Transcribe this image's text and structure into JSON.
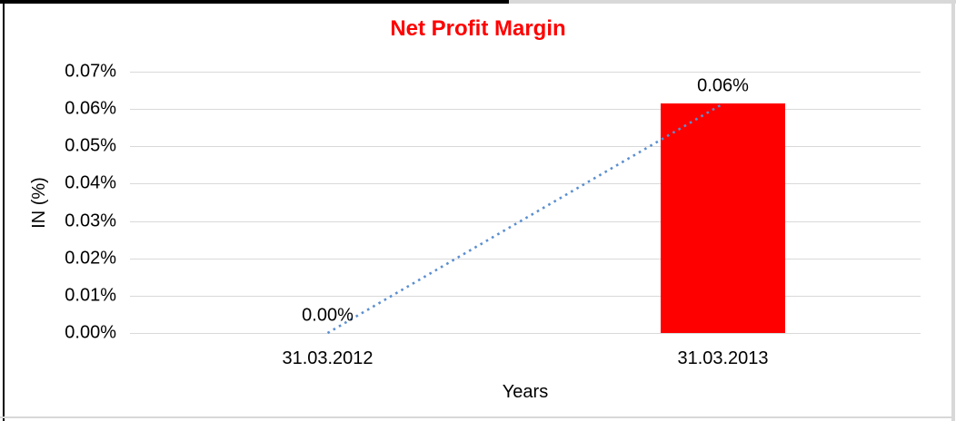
{
  "window": {
    "frame": {
      "top_left_color": "#000000",
      "bottom_right_color": "#d8d8d8"
    }
  },
  "chart_data": {
    "type": "bar",
    "title": "Net Profit Margin",
    "title_color": "#ff0000",
    "xlabel": "Years",
    "ylabel": "IN (%)",
    "categories": [
      "31.03.2012",
      "31.03.2013"
    ],
    "values": [
      0.0,
      0.0614
    ],
    "data_labels": [
      "0.00%",
      "0.06%"
    ],
    "bar_color": "#ff0000",
    "ylim": [
      0,
      0.07
    ],
    "y_tick_step": 0.01,
    "y_tick_labels": [
      "0.00%",
      "0.01%",
      "0.02%",
      "0.03%",
      "0.04%",
      "0.05%",
      "0.06%",
      "0.07%"
    ],
    "grid": true,
    "gridline_color": "#d9d9d9",
    "legend": "none",
    "trendline": {
      "type": "linear",
      "style": "dotted",
      "color": "#5b8fd0",
      "from": {
        "category": "31.03.2012",
        "value": 0.0
      },
      "to": {
        "category": "31.03.2013",
        "value": 0.0614
      }
    }
  }
}
